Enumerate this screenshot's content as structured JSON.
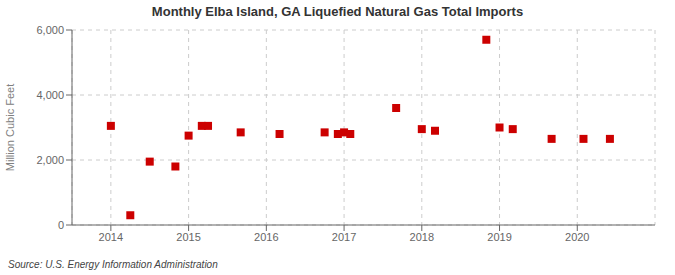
{
  "chart_data": {
    "type": "scatter",
    "title": "Monthly Elba Island, GA Liquefied Natural Gas Total Imports",
    "y_label": "Million Cubic Feet",
    "annotations": [
      "Source: U.S. Energy Information Administration"
    ],
    "x": [
      2014.0,
      2014.25,
      2014.5,
      2014.83,
      2015.0,
      2015.17,
      2015.25,
      2015.67,
      2016.17,
      2016.75,
      2016.92,
      2017.0,
      2017.08,
      2017.67,
      2018.0,
      2018.17,
      2018.83,
      2019.0,
      2019.17,
      2019.67,
      2020.08,
      2020.42
    ],
    "values": [
      3050,
      300,
      1950,
      1800,
      2750,
      3050,
      3050,
      2850,
      2800,
      2850,
      2800,
      2850,
      2800,
      3600,
      2950,
      2900,
      5700,
      3000,
      2950,
      2650,
      2650,
      2650
    ],
    "color": "#cc0000",
    "marker": "square",
    "xlim": [
      2013.5,
      2021.0
    ],
    "xticks": [
      2014,
      2015,
      2016,
      2017,
      2018,
      2019,
      2020
    ],
    "ylim": [
      0,
      6000
    ],
    "yticks": [
      0,
      {
        "value": 2000,
        "label": "2,000"
      },
      {
        "value": 4000,
        "label": "4,000"
      },
      {
        "value": 6000,
        "label": "6,000"
      }
    ],
    "grid": true
  }
}
